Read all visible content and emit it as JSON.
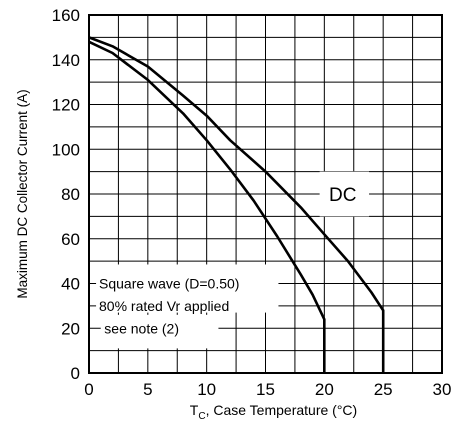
{
  "chart_data": {
    "type": "line",
    "xlabel_sub": "C",
    "xlabel_prefix": "T",
    "xlabel_rest": ", Case Temperature (°C)",
    "ylabel": "Maximum DC Collector Current (A)",
    "xlim": [
      0,
      30
    ],
    "ylim": [
      0,
      160
    ],
    "x_ticks": [
      0,
      5,
      10,
      15,
      20,
      25,
      30
    ],
    "y_ticks": [
      0,
      20,
      40,
      60,
      80,
      100,
      120,
      140,
      160
    ],
    "grid": true,
    "series": [
      {
        "label": "DC",
        "x": [
          0,
          2,
          5,
          8,
          10,
          12,
          15,
          18,
          20,
          22,
          24,
          25,
          25
        ],
        "y": [
          150,
          146,
          137,
          124,
          115,
          104,
          90,
          74,
          62,
          50,
          36,
          28,
          0
        ]
      },
      {
        "label": "Square wave (D=0.50)",
        "x": [
          0,
          2,
          5,
          8,
          10,
          12,
          14,
          16,
          18,
          19,
          20,
          20
        ],
        "y": [
          148,
          143,
          131,
          116,
          104,
          91,
          77,
          61,
          44,
          35,
          24,
          0
        ]
      }
    ],
    "annotations": {
      "dc": "DC",
      "square_line1": "Square wave (D=0.50)",
      "square_line2": "80% rated Vr applied",
      "note": "see note (2)"
    }
  }
}
